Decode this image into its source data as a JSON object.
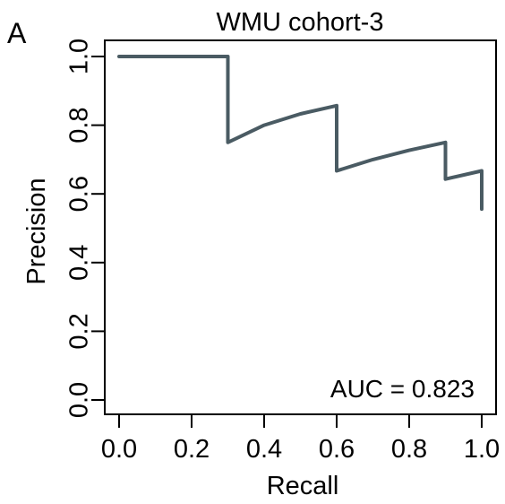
{
  "panel_label": "A",
  "chart_data": {
    "type": "line",
    "title": "WMU cohort-3",
    "xlabel": "Recall",
    "ylabel": "Precision",
    "xlim": [
      0,
      1
    ],
    "ylim": [
      0,
      1
    ],
    "x_ticks": [
      "0.0",
      "0.2",
      "0.4",
      "0.6",
      "0.8",
      "1.0"
    ],
    "y_ticks": [
      "0.0",
      "0.2",
      "0.4",
      "0.6",
      "0.8",
      "1.0"
    ],
    "grid": false,
    "annotation": "AUC = 0.823",
    "line_color": "#4a5b63",
    "series": [
      {
        "x": [
          0.0,
          0.3,
          0.3,
          0.4,
          0.5,
          0.6,
          0.6,
          0.7,
          0.8,
          0.9,
          0.9,
          1.0,
          1.0
        ],
        "y": [
          1.0,
          1.0,
          0.75,
          0.8,
          0.833,
          0.857,
          0.667,
          0.7,
          0.727,
          0.75,
          0.643,
          0.667,
          0.556
        ]
      }
    ]
  }
}
